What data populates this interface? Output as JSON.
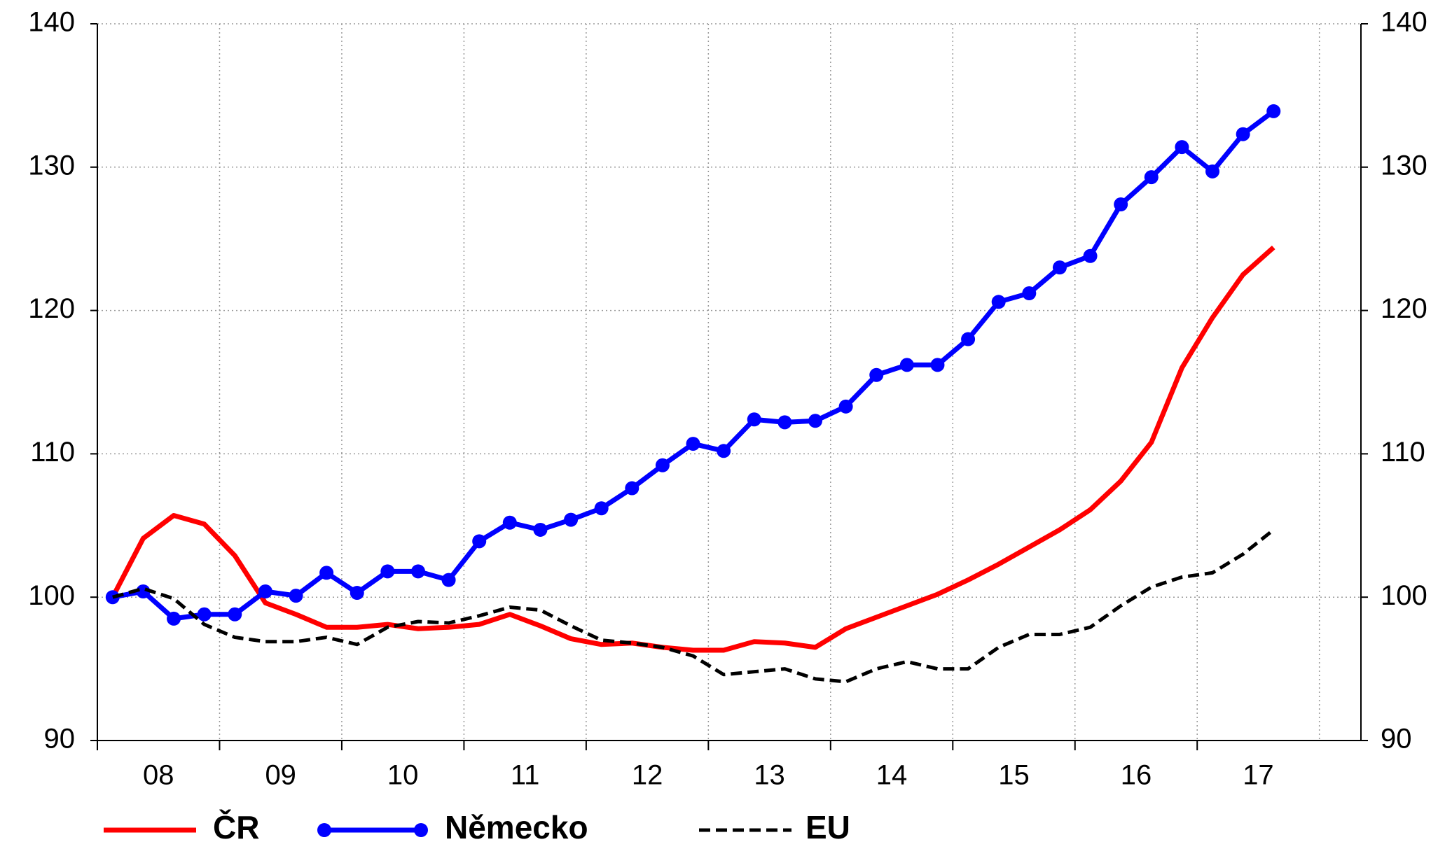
{
  "chart_data": {
    "type": "line",
    "x": [
      2008.125,
      2008.375,
      2008.625,
      2008.875,
      2009.125,
      2009.375,
      2009.625,
      2009.875,
      2010.125,
      2010.375,
      2010.625,
      2010.875,
      2011.125,
      2011.375,
      2011.625,
      2011.875,
      2012.125,
      2012.375,
      2012.625,
      2012.875,
      2013.125,
      2013.375,
      2013.625,
      2013.875,
      2014.125,
      2014.375,
      2014.625,
      2014.875,
      2015.125,
      2015.375,
      2015.625,
      2015.875,
      2016.125,
      2016.375,
      2016.625,
      2016.875,
      2017.125,
      2017.375,
      2017.625
    ],
    "series": [
      {
        "name": "ČR",
        "color": "#ff0000",
        "values": [
          100.0,
          104.1,
          105.7,
          105.1,
          102.9,
          99.6,
          98.8,
          97.9,
          97.9,
          98.1,
          97.8,
          97.9,
          98.1,
          98.8,
          98.0,
          97.1,
          96.7,
          96.8,
          96.5,
          96.3,
          96.3,
          96.9,
          96.8,
          96.5,
          97.8,
          98.6,
          99.4,
          100.2,
          101.2,
          102.3,
          103.5,
          104.7,
          106.1,
          108.1,
          110.8,
          116.0,
          119.5,
          122.5,
          124.4
        ]
      },
      {
        "name": "Německo",
        "color": "#0000ff",
        "markers": true,
        "values": [
          100.0,
          100.4,
          98.5,
          98.8,
          98.8,
          100.4,
          100.1,
          101.7,
          100.3,
          101.8,
          101.8,
          101.2,
          103.9,
          105.2,
          104.7,
          105.4,
          106.2,
          107.6,
          109.2,
          110.7,
          110.2,
          112.4,
          112.2,
          112.3,
          113.3,
          115.5,
          116.2,
          116.2,
          118.0,
          120.6,
          121.2,
          123.0,
          123.8,
          127.4,
          129.3,
          131.4,
          129.7,
          132.3,
          133.9
        ]
      },
      {
        "name": "EU",
        "color": "#000000",
        "dashed": true,
        "values": [
          100.0,
          100.6,
          99.9,
          98.1,
          97.2,
          96.9,
          96.9,
          97.2,
          96.7,
          97.9,
          98.3,
          98.2,
          98.7,
          99.3,
          99.1,
          98.0,
          97.0,
          96.8,
          96.5,
          95.9,
          94.6,
          94.8,
          95.0,
          94.3,
          94.1,
          95.0,
          95.5,
          95.0,
          95.0,
          96.5,
          97.4,
          97.4,
          97.9,
          99.4,
          100.7,
          101.4,
          101.7,
          103.0,
          104.7
        ]
      }
    ],
    "xlim": [
      2008,
      2018.34
    ],
    "xticks": [
      {
        "value": 2008,
        "label": "08"
      },
      {
        "value": 2009,
        "label": "09"
      },
      {
        "value": 2010,
        "label": "10"
      },
      {
        "value": 2011,
        "label": "11"
      },
      {
        "value": 2012,
        "label": "12"
      },
      {
        "value": 2013,
        "label": "13"
      },
      {
        "value": 2014,
        "label": "14"
      },
      {
        "value": 2015,
        "label": "15"
      },
      {
        "value": 2016,
        "label": "16"
      },
      {
        "value": 2017,
        "label": "17"
      }
    ],
    "xgrid": [
      2009,
      2010,
      2011,
      2012,
      2013,
      2014,
      2015,
      2016,
      2017,
      2018
    ],
    "ylim": [
      90,
      140
    ],
    "yticks": [
      90,
      100,
      110,
      120,
      130,
      140
    ],
    "grid": true
  }
}
